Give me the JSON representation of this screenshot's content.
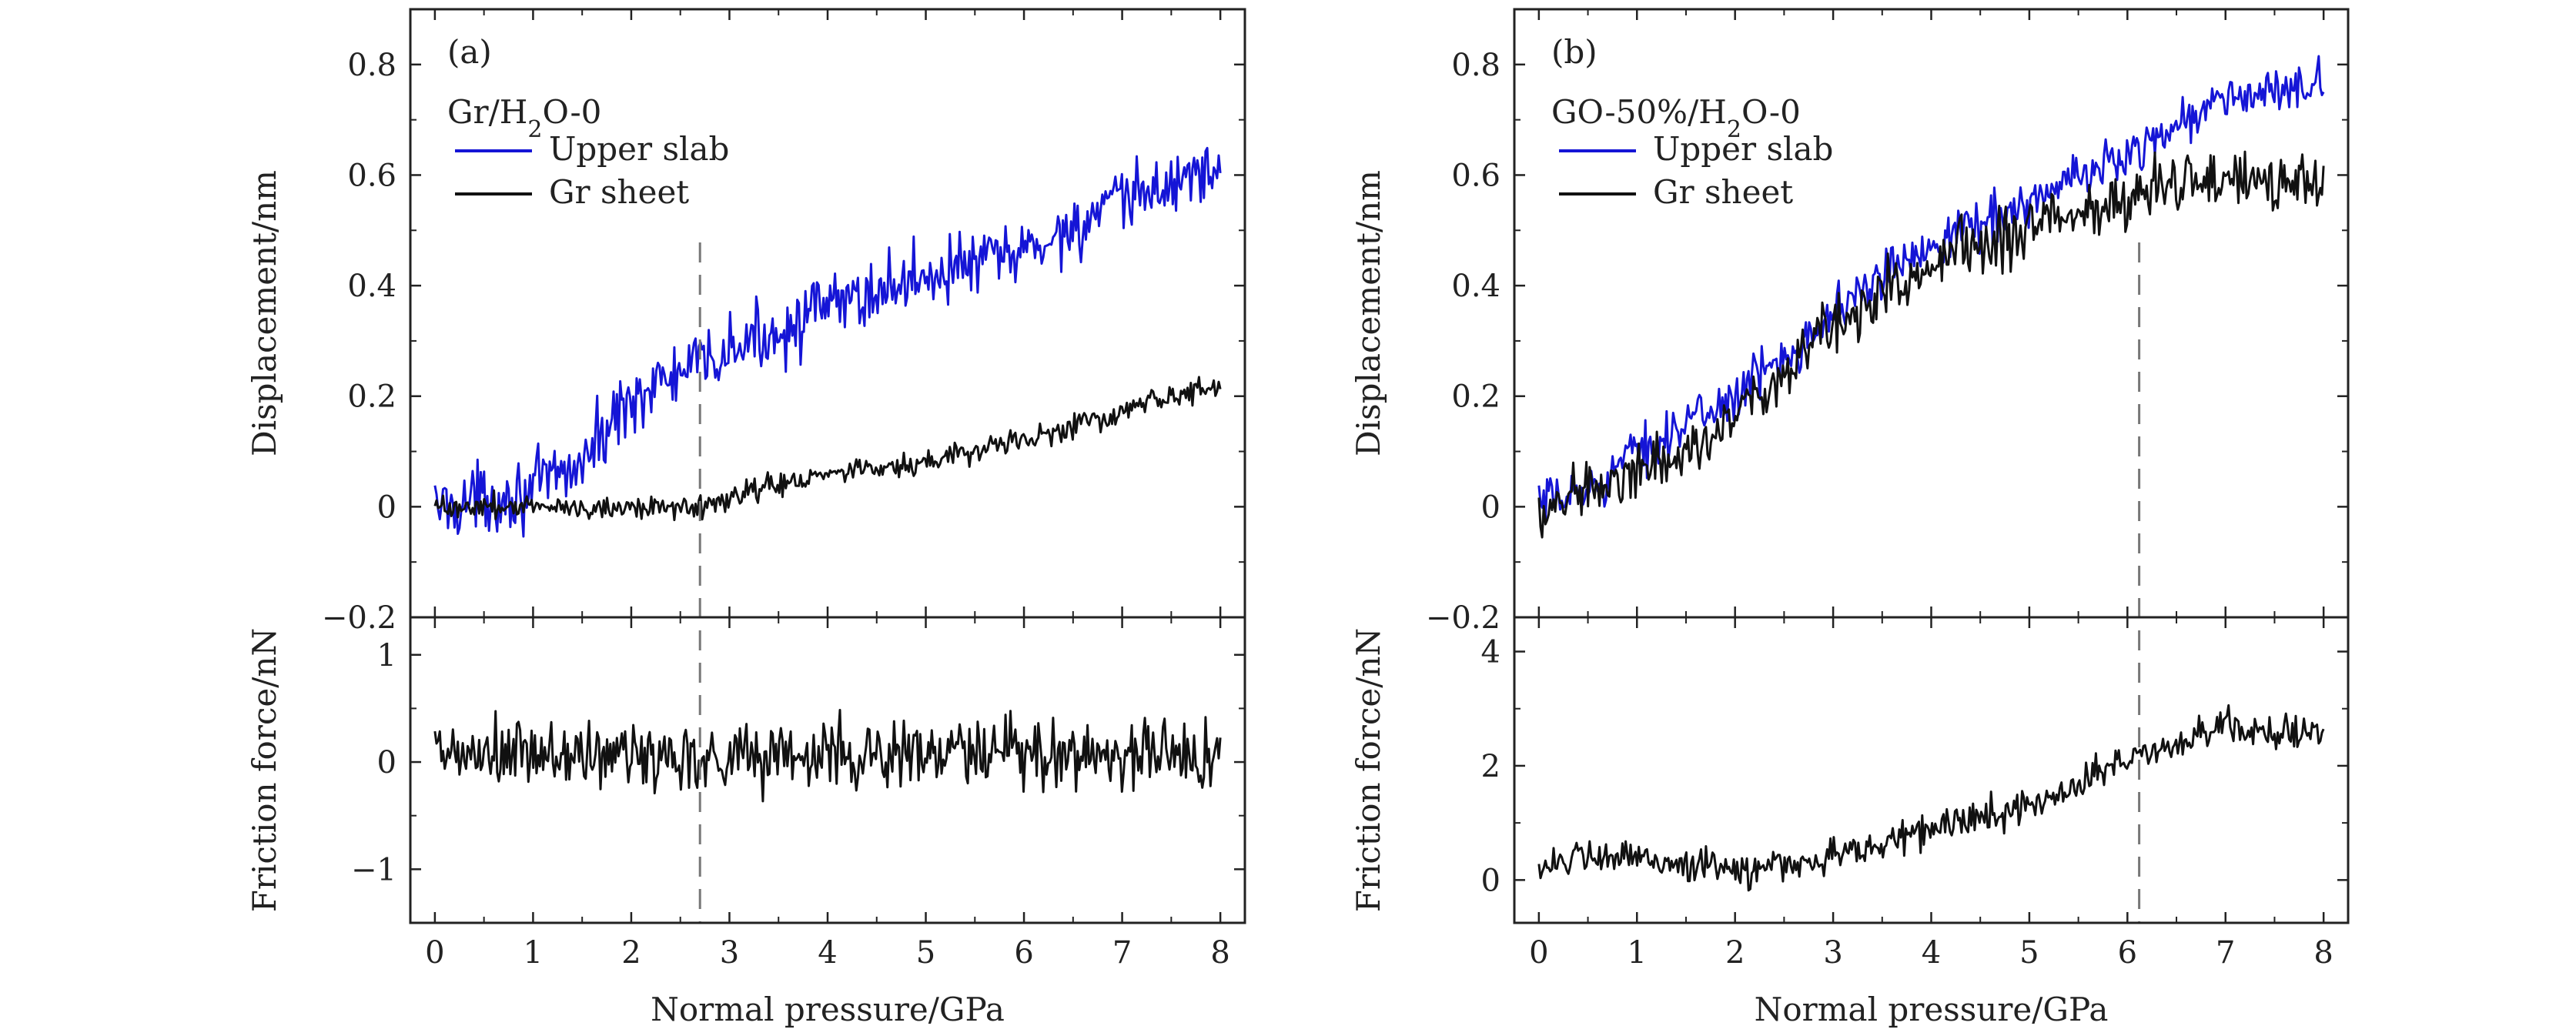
{
  "chart_data": [
    {
      "type": "line",
      "panel_label": "(a)",
      "sample_label": "Gr/H<sub>2</sub>O-0",
      "sample_label_plain": "Gr/H2O-0",
      "xlabel": "Normal pressure/GPa",
      "xlim": [
        -0.25,
        8.25
      ],
      "xticks": [
        0,
        1,
        2,
        3,
        4,
        5,
        6,
        7,
        8
      ],
      "marker_x": 2.7,
      "top": {
        "ylabel": "Displacement/nm",
        "ylim": [
          -0.2,
          0.9
        ],
        "yticks": [
          -0.2,
          0,
          0.2,
          0.4,
          0.6,
          0.8
        ],
        "ytick_labels": [
          "−0.2",
          "0",
          "0.2",
          "0.4",
          "0.6",
          "0.8"
        ],
        "legend_position": "upper-left",
        "series": [
          {
            "name": "Upper slab",
            "color": "#1515d6",
            "trend_x": [
              0,
              1,
              1.5,
              2,
              3,
              4,
              5,
              6,
              7,
              8
            ],
            "trend_y": [
              0.0,
              0.03,
              0.08,
              0.2,
              0.28,
              0.36,
              0.42,
              0.46,
              0.55,
              0.62
            ],
            "noise": 0.07,
            "points": 480
          },
          {
            "name": "Gr sheet",
            "color": "#111111",
            "trend_x": [
              0,
              1.5,
              2.7,
              3,
              4,
              5,
              6,
              7,
              8
            ],
            "trend_y": [
              0.0,
              0.0,
              0.0,
              0.02,
              0.06,
              0.08,
              0.12,
              0.17,
              0.22
            ],
            "noise": 0.025,
            "points": 480
          }
        ]
      },
      "bottom": {
        "ylabel": "Friction force/nN",
        "ylim": [
          -1.5,
          1.35
        ],
        "yticks": [
          -1,
          0,
          1
        ],
        "ytick_labels": [
          "−1",
          "0",
          "1"
        ],
        "series": [
          {
            "name": "",
            "color": "#111111",
            "trend_x": [
              0,
              8
            ],
            "trend_y": [
              0.05,
              0.08
            ],
            "noise": 0.4,
            "points": 480
          }
        ]
      }
    },
    {
      "type": "line",
      "panel_label": "(b)",
      "sample_label": "GO-50%/H<sub>2</sub>O-0",
      "sample_label_plain": "GO-50%/H2O-0",
      "xlabel": "Normal pressure/GPa",
      "xlim": [
        -0.25,
        8.25
      ],
      "xticks": [
        0,
        1,
        2,
        3,
        4,
        5,
        6,
        7,
        8
      ],
      "marker_x": 6.12,
      "top": {
        "ylabel": "Displacement/nm",
        "ylim": [
          -0.2,
          0.9
        ],
        "yticks": [
          -0.2,
          0,
          0.2,
          0.4,
          0.6,
          0.8
        ],
        "ytick_labels": [
          "−0.2",
          "0",
          "0.2",
          "0.4",
          "0.6",
          "0.8"
        ],
        "legend_position": "upper-left",
        "series": [
          {
            "name": "Upper slab",
            "color": "#1515d6",
            "trend_x": [
              0,
              0.5,
              1,
              2,
              3,
              4,
              5,
              6,
              7,
              8
            ],
            "trend_y": [
              0.0,
              0.03,
              0.1,
              0.2,
              0.35,
              0.48,
              0.55,
              0.64,
              0.74,
              0.76
            ],
            "noise": 0.05,
            "points": 480
          },
          {
            "name": "Gr sheet",
            "color": "#111111",
            "trend_x": [
              0,
              0.5,
              1,
              2,
              3,
              4,
              5,
              6,
              7,
              8
            ],
            "trend_y": [
              0.0,
              0.02,
              0.06,
              0.16,
              0.32,
              0.45,
              0.5,
              0.56,
              0.6,
              0.58
            ],
            "noise": 0.06,
            "points": 480
          }
        ]
      },
      "bottom": {
        "ylabel": "Friction force/nN",
        "ylim": [
          -0.75,
          4.6
        ],
        "yticks": [
          0,
          2,
          4
        ],
        "ytick_labels": [
          "0",
          "2",
          "4"
        ],
        "series": [
          {
            "name": "",
            "color": "#111111",
            "trend_x": [
              0,
              1,
              2,
              3,
              4,
              5,
              6,
              7,
              8
            ],
            "trend_y": [
              0.3,
              0.4,
              0.15,
              0.4,
              0.9,
              1.3,
              2.1,
              2.7,
              2.5
            ],
            "noise": 0.35,
            "points": 480
          }
        ]
      }
    }
  ]
}
